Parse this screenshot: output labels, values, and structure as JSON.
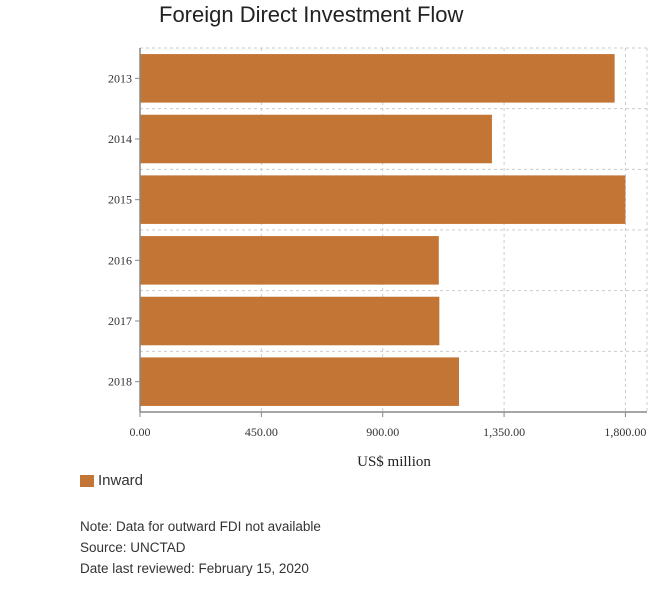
{
  "chart_data": {
    "type": "bar",
    "orientation": "horizontal",
    "title": "Foreign Direct Investment Flow",
    "categories": [
      "2013",
      "2014",
      "2015",
      "2016",
      "2017",
      "2018"
    ],
    "series": [
      {
        "name": "Inward",
        "values": [
          1760,
          1305,
          1800,
          1108,
          1110,
          1183
        ]
      }
    ],
    "xlabel": "US$ million",
    "ylabel": "",
    "xlim": [
      0,
      1880
    ],
    "xticks": [
      "0.00",
      "450.00",
      "900.00",
      "1,350.00",
      "1,800.00"
    ],
    "xtick_values": [
      0,
      450,
      900,
      1350,
      1800
    ],
    "grid": true,
    "legend": "bottom-left",
    "colors": {
      "bar": "#c27535",
      "grid": "#cccccc",
      "axis": "#888888"
    }
  },
  "notes": {
    "note": "Note: Data for outward FDI not available",
    "source": "Source: UNCTAD",
    "reviewed": "Date last reviewed: February 15, 2020"
  }
}
